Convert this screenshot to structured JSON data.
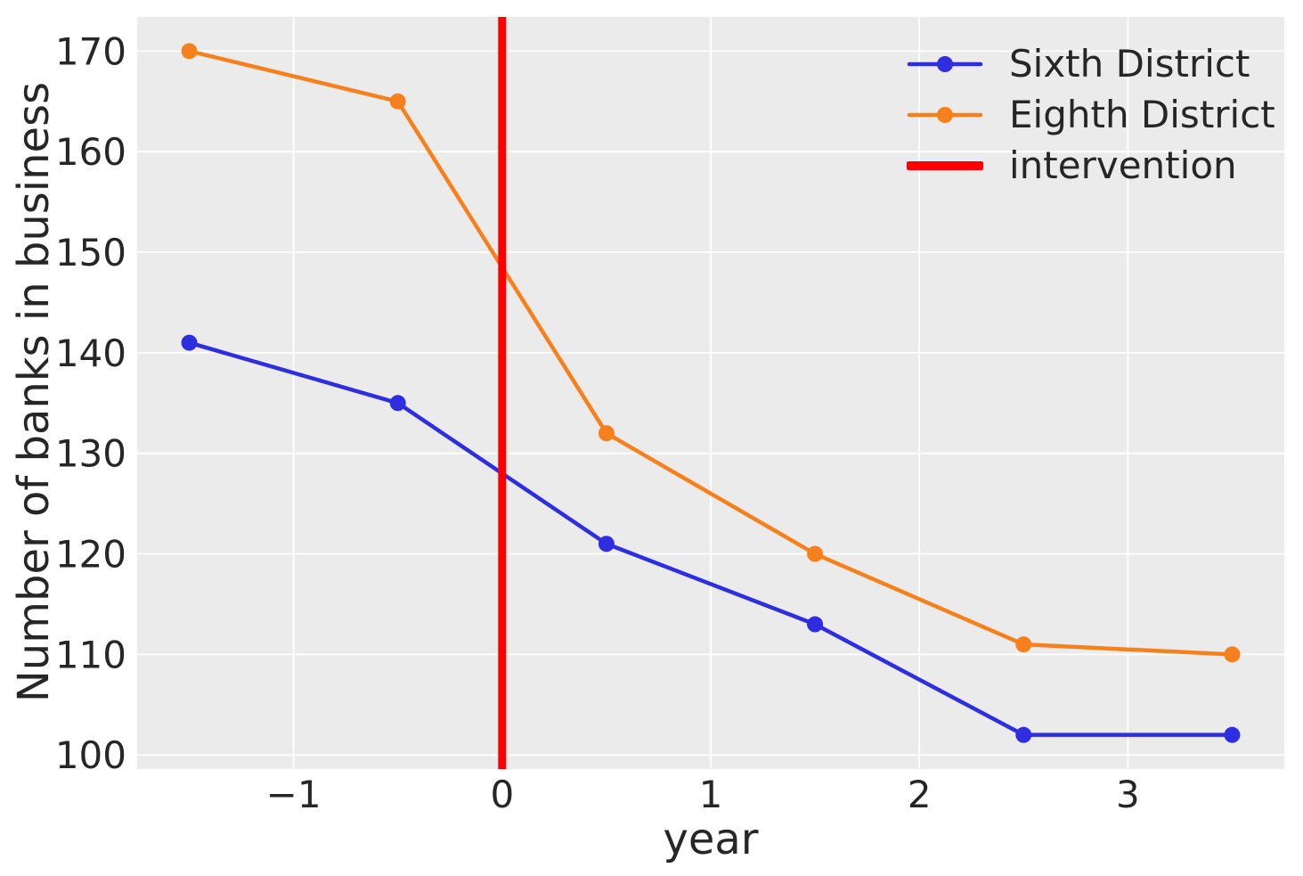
{
  "chart_data": {
    "type": "line",
    "title": "",
    "xlabel": "year",
    "ylabel": "Number of banks in business",
    "x": [
      -1.5,
      -0.5,
      0.5,
      1.5,
      2.5,
      3.5
    ],
    "series": [
      {
        "name": "Sixth District",
        "color": "#2e2ee0",
        "marker": "circle",
        "values": [
          141,
          135,
          121,
          113,
          102,
          102
        ]
      },
      {
        "name": "Eighth District",
        "color": "#f6811c",
        "marker": "circle",
        "values": [
          170,
          165,
          132,
          120,
          111,
          110
        ]
      }
    ],
    "vline": {
      "label": "intervention",
      "x": 0,
      "color": "#ff0000"
    },
    "xlim": [
      -1.75,
      3.75
    ],
    "ylim": [
      98.6,
      173.4
    ],
    "x_ticks": [
      -1,
      0,
      1,
      2,
      3
    ],
    "y_ticks": [
      100,
      110,
      120,
      130,
      140,
      150,
      160,
      170
    ],
    "grid": true,
    "legend_position": "upper right",
    "legend": [
      {
        "label": "Sixth District",
        "color": "#2e2ee0",
        "style": "line-marker"
      },
      {
        "label": "Eighth District",
        "color": "#f6811c",
        "style": "line-marker"
      },
      {
        "label": "intervention",
        "color": "#ff0000",
        "style": "thick-line"
      }
    ]
  },
  "colors": {
    "figure_bg": "#ffffff",
    "axes_bg": "#ebebeb",
    "gridline": "#ffffff",
    "text": "#262626"
  }
}
